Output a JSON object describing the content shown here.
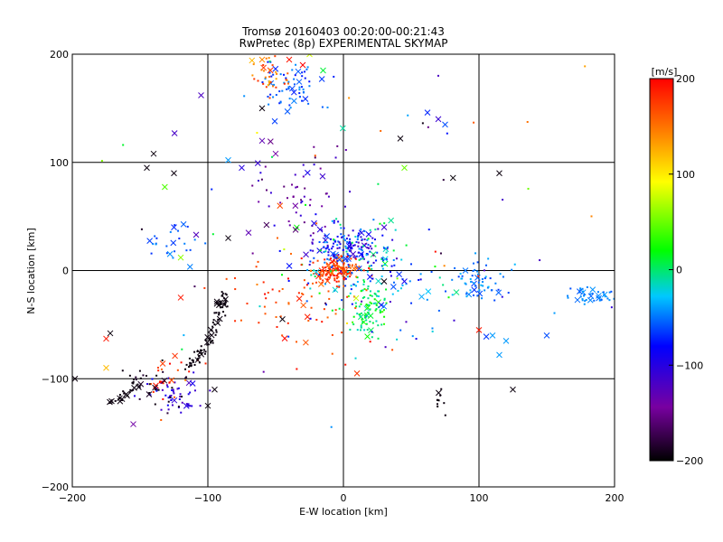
{
  "title": "Tromsø 20160403 00:20:00-00:21:43",
  "subtitle": "RwPretec (8p) EXPERIMENTAL SKYMAP",
  "chart_data": {
    "type": "scatter",
    "xlabel": "E-W location [km]",
    "ylabel": "N-S location [km]",
    "xlim": [
      -200,
      200
    ],
    "ylim": [
      -200,
      200
    ],
    "xticks": [
      -200,
      -100,
      0,
      100,
      200
    ],
    "yticks": [
      -200,
      -100,
      0,
      100,
      200
    ],
    "xtick_labels": [
      "−200",
      "−100",
      "0",
      "100",
      "200"
    ],
    "ytick_labels": [
      "−200",
      "−100",
      "0",
      "100",
      "200"
    ],
    "grid": true,
    "colorbar": {
      "label": "[m/s]",
      "range": [
        -200,
        200
      ],
      "ticks": [
        200,
        100,
        0,
        -100,
        -200
      ],
      "tick_labels": [
        "200",
        "100",
        "0",
        "−100",
        "−200"
      ],
      "colormap": [
        "#000000",
        "#7800a0",
        "#0000ff",
        "#00c8ff",
        "#00ff00",
        "#ffff00",
        "#ff8000",
        "#ff0000"
      ]
    },
    "markers": [
      "dot",
      "cross"
    ],
    "clusters": [
      {
        "cx": 5,
        "cy": 22,
        "sx": 14,
        "sy": 10,
        "n": 160,
        "vmin": -130,
        "vmax": -40
      },
      {
        "cx": -5,
        "cy": 0,
        "sx": 10,
        "sy": 5,
        "n": 120,
        "vmin": 150,
        "vmax": 200
      },
      {
        "cx": 17,
        "cy": -35,
        "sx": 10,
        "sy": 14,
        "n": 90,
        "vmin": -20,
        "vmax": 40
      },
      {
        "cx": 10,
        "cy": 5,
        "sx": 22,
        "sy": 22,
        "n": 110,
        "vmin": -80,
        "vmax": 20
      },
      {
        "cx": -40,
        "cy": 170,
        "sx": 12,
        "sy": 12,
        "n": 70,
        "vmin": -80,
        "vmax": -40
      },
      {
        "cx": -55,
        "cy": 178,
        "sx": 6,
        "sy": 10,
        "n": 35,
        "vmin": 120,
        "vmax": 190
      },
      {
        "cx": -35,
        "cy": 75,
        "sx": 18,
        "sy": 20,
        "n": 55,
        "vmin": -170,
        "vmax": -90
      },
      {
        "cx": 100,
        "cy": -10,
        "sx": 12,
        "sy": 10,
        "n": 60,
        "vmin": -70,
        "vmax": -30
      },
      {
        "cx": 185,
        "cy": -23,
        "sx": 10,
        "sy": 4,
        "n": 45,
        "vmin": -60,
        "vmax": -40
      },
      {
        "cx": -125,
        "cy": -115,
        "sx": 10,
        "sy": 10,
        "n": 50,
        "vmin": -130,
        "vmax": -80
      },
      {
        "cx": -130,
        "cy": -95,
        "sx": 8,
        "sy": 12,
        "n": 25,
        "vmin": 150,
        "vmax": 200
      },
      {
        "cx": -140,
        "cy": -110,
        "sx": 12,
        "sy": 10,
        "n": 30,
        "vmin": -200,
        "vmax": -180
      },
      {
        "cx": -125,
        "cy": 25,
        "sx": 10,
        "sy": 10,
        "n": 25,
        "vmin": -70,
        "vmax": -40
      },
      {
        "cx": -30,
        "cy": -30,
        "sx": 25,
        "sy": 25,
        "n": 70,
        "vmin": 150,
        "vmax": 200
      },
      {
        "cx": 40,
        "cy": -20,
        "sx": 20,
        "sy": 25,
        "n": 45,
        "vmin": -130,
        "vmax": 0
      },
      {
        "cx": 0,
        "cy": 40,
        "sx": 90,
        "sy": 90,
        "n": 80,
        "vmin": -200,
        "vmax": 200
      }
    ],
    "streaks": [
      {
        "from": [
          -87,
          -22
        ],
        "to": [
          -100,
          -70
        ],
        "n": 55,
        "v": -195
      },
      {
        "from": [
          -100,
          -70
        ],
        "to": [
          -115,
          -90
        ],
        "n": 30,
        "v": -195
      },
      {
        "from": [
          -150,
          -100
        ],
        "to": [
          -170,
          -125
        ],
        "n": 25,
        "v": -195
      },
      {
        "from": [
          70,
          -110
        ],
        "to": [
          75,
          -135
        ],
        "n": 10,
        "v": -195
      }
    ],
    "crosses": [
      {
        "x": -140,
        "y": 108,
        "v": -195
      },
      {
        "x": -145,
        "y": 95,
        "v": -195
      },
      {
        "x": -125,
        "y": 90,
        "v": -195
      },
      {
        "x": 42,
        "y": 122,
        "v": -195
      },
      {
        "x": 115,
        "y": 90,
        "v": -195
      },
      {
        "x": -60,
        "y": 150,
        "v": -195
      },
      {
        "x": -105,
        "y": 162,
        "v": -120
      },
      {
        "x": 62,
        "y": 146,
        "v": -70
      },
      {
        "x": 70,
        "y": 140,
        "v": -110
      },
      {
        "x": 75,
        "y": 135,
        "v": -60
      },
      {
        "x": 45,
        "y": 95,
        "v": 50
      },
      {
        "x": -120,
        "y": 12,
        "v": 60
      },
      {
        "x": -125,
        "y": 40,
        "v": -70
      },
      {
        "x": -120,
        "y": -25,
        "v": 190
      },
      {
        "x": -175,
        "y": -63,
        "v": 190
      },
      {
        "x": -172,
        "y": -58,
        "v": -195
      },
      {
        "x": -175,
        "y": -90,
        "v": 120
      },
      {
        "x": -155,
        "y": -142,
        "v": -140
      },
      {
        "x": -198,
        "y": -100,
        "v": -195
      },
      {
        "x": -165,
        "y": -118,
        "v": -195
      },
      {
        "x": -100,
        "y": -125,
        "v": -195
      },
      {
        "x": -95,
        "y": -110,
        "v": -195
      },
      {
        "x": 100,
        "y": -55,
        "v": 190
      },
      {
        "x": 110,
        "y": -60,
        "v": -40
      },
      {
        "x": 120,
        "y": -65,
        "v": -40
      },
      {
        "x": 115,
        "y": -78,
        "v": -40
      },
      {
        "x": 30,
        "y": -10,
        "v": -195
      },
      {
        "x": -45,
        "y": -45,
        "v": -195
      },
      {
        "x": -85,
        "y": 30,
        "v": -195
      },
      {
        "x": -70,
        "y": 35,
        "v": -130
      },
      {
        "x": -50,
        "y": 108,
        "v": -140
      },
      {
        "x": -75,
        "y": 95,
        "v": -100
      },
      {
        "x": 45,
        "y": -10,
        "v": -90
      },
      {
        "x": -40,
        "y": 195,
        "v": 190
      },
      {
        "x": -30,
        "y": 190,
        "v": 200
      },
      {
        "x": -60,
        "y": 195,
        "v": 140
      },
      {
        "x": -25,
        "y": 200,
        "v": 80
      },
      {
        "x": -15,
        "y": 185,
        "v": 10
      },
      {
        "x": 125,
        "y": -110,
        "v": -195
      },
      {
        "x": 90,
        "y": 0,
        "v": -50
      },
      {
        "x": 150,
        "y": -60,
        "v": -60
      },
      {
        "x": -60,
        "y": 120,
        "v": -130
      }
    ]
  }
}
